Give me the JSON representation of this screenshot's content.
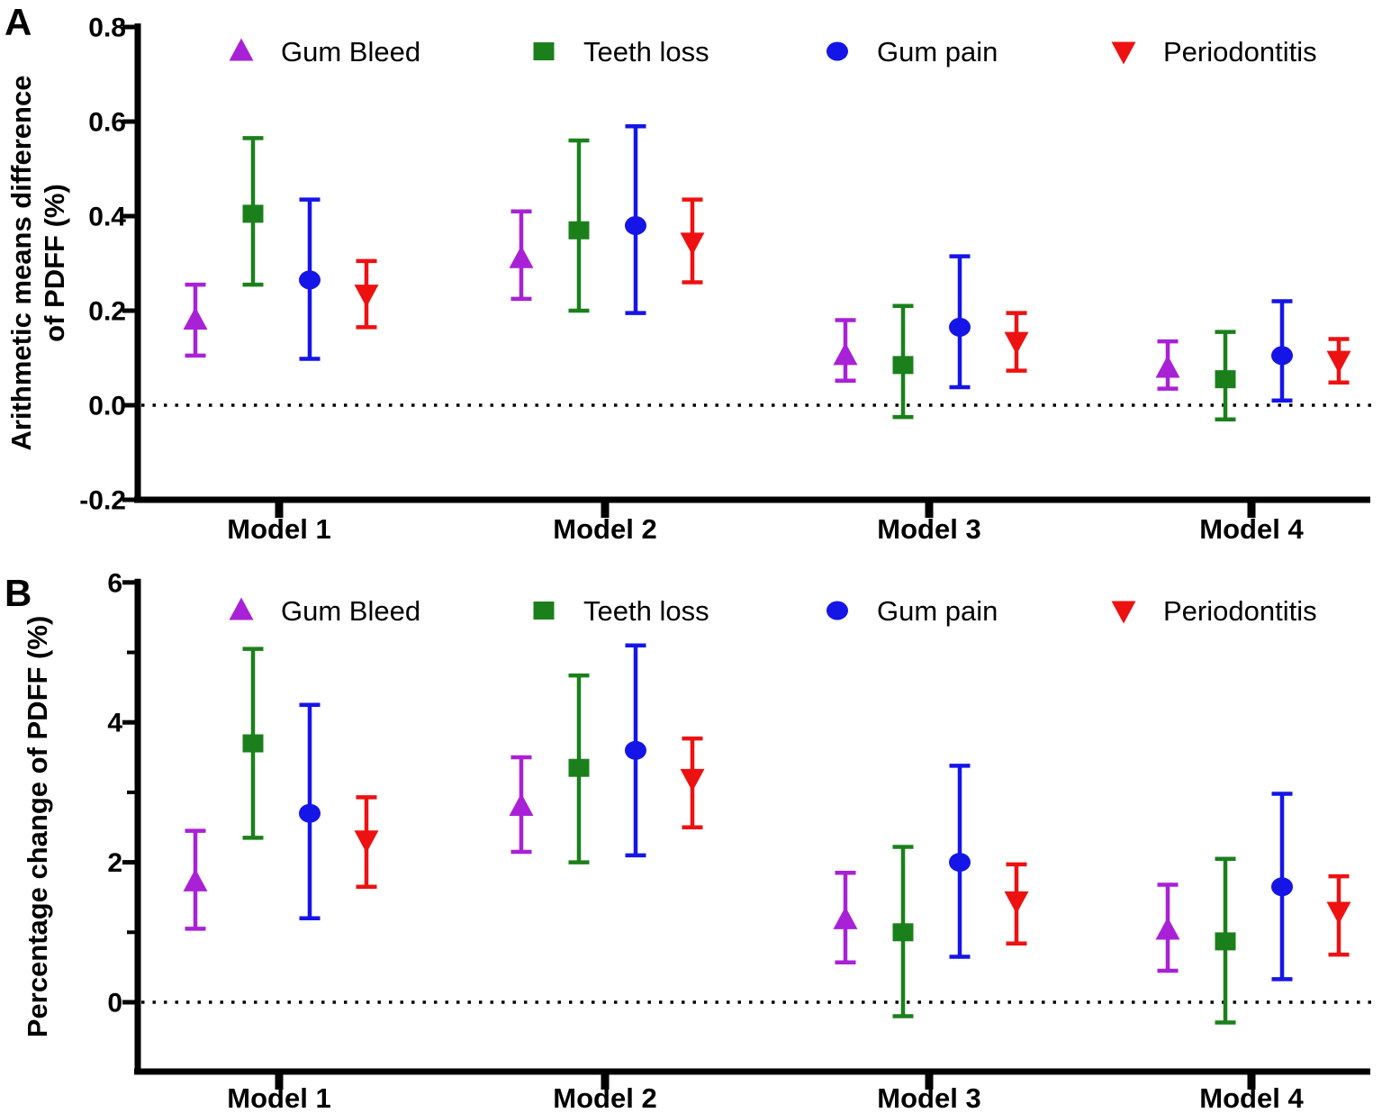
{
  "figure": {
    "panel_a_label": "A",
    "panel_b_label": "B",
    "background": "#ffffff",
    "axis_color": "#000000"
  },
  "chart_data": [
    {
      "type": "scatter",
      "panel": "A",
      "title": "",
      "xlabel": "",
      "ylabel_lines": [
        "Arithmetic means difference",
        "of PDFF (%)"
      ],
      "categories": [
        "Model 1",
        "Model 2",
        "Model 3",
        "Model 4"
      ],
      "ylim": [
        -0.2,
        0.8
      ],
      "yticks": [
        {
          "v": 0.8,
          "label": "0.8"
        },
        {
          "v": 0.6,
          "label": "0.6"
        },
        {
          "v": 0.4,
          "label": "0.4"
        },
        {
          "v": 0.2,
          "label": "0.2"
        },
        {
          "v": 0.0,
          "label": "0.0"
        },
        {
          "v": -0.2,
          "label": "-0.2"
        }
      ],
      "minor_yticks": [],
      "reference_line_y": 0,
      "grid": false,
      "legend_position": "top",
      "series": [
        {
          "name": "Gum Bleed",
          "marker": "triangle-up",
          "color": "#A921D6",
          "values": [
            0.18,
            0.31,
            0.105,
            0.078
          ],
          "ci_low": [
            0.105,
            0.225,
            0.052,
            0.035
          ],
          "ci_high": [
            0.255,
            0.41,
            0.18,
            0.135
          ]
        },
        {
          "name": "Teeth loss",
          "marker": "square",
          "color": "#1B801B",
          "values": [
            0.405,
            0.37,
            0.085,
            0.055
          ],
          "ci_low": [
            0.255,
            0.2,
            -0.025,
            -0.03
          ],
          "ci_high": [
            0.565,
            0.56,
            0.21,
            0.155
          ]
        },
        {
          "name": "Gum pain",
          "marker": "circle",
          "color": "#1515E8",
          "values": [
            0.265,
            0.38,
            0.165,
            0.105
          ],
          "ci_low": [
            0.098,
            0.195,
            0.038,
            0.01
          ],
          "ci_high": [
            0.435,
            0.59,
            0.315,
            0.22
          ]
        },
        {
          "name": "Periodontitis",
          "marker": "triangle-down",
          "color": "#EE1111",
          "values": [
            0.235,
            0.345,
            0.135,
            0.095
          ],
          "ci_low": [
            0.165,
            0.26,
            0.073,
            0.048
          ],
          "ci_high": [
            0.305,
            0.435,
            0.195,
            0.14
          ]
        }
      ]
    },
    {
      "type": "scatter",
      "panel": "B",
      "title": "",
      "xlabel": "",
      "ylabel_lines": [
        "Percentage change of PDFF (%)"
      ],
      "categories": [
        "Model 1",
        "Model 2",
        "Model 3",
        "Model 4"
      ],
      "ylim": [
        -1,
        6
      ],
      "yticks": [
        {
          "v": 6,
          "label": "6"
        },
        {
          "v": 4,
          "label": "4"
        },
        {
          "v": 2,
          "label": "2"
        },
        {
          "v": 0,
          "label": "0"
        }
      ],
      "minor_yticks": [
        5,
        3,
        1
      ],
      "reference_line_y": 0,
      "grid": false,
      "legend_position": "top",
      "series": [
        {
          "name": "Gum Bleed",
          "marker": "triangle-up",
          "color": "#A921D6",
          "values": [
            1.72,
            2.8,
            1.18,
            1.03
          ],
          "ci_low": [
            1.05,
            2.15,
            0.57,
            0.45
          ],
          "ci_high": [
            2.45,
            3.5,
            1.85,
            1.68
          ]
        },
        {
          "name": "Teeth loss",
          "marker": "square",
          "color": "#1B801B",
          "values": [
            3.7,
            3.35,
            1.0,
            0.87
          ],
          "ci_low": [
            2.35,
            2.0,
            -0.2,
            -0.29
          ],
          "ci_high": [
            5.05,
            4.67,
            2.22,
            2.05
          ]
        },
        {
          "name": "Gum pain",
          "marker": "circle",
          "color": "#1515E8",
          "values": [
            2.7,
            3.6,
            2.0,
            1.65
          ],
          "ci_low": [
            1.2,
            2.1,
            0.65,
            0.33
          ],
          "ci_high": [
            4.25,
            5.1,
            3.38,
            2.98
          ]
        },
        {
          "name": "Periodontitis",
          "marker": "triangle-down",
          "color": "#EE1111",
          "values": [
            2.32,
            3.2,
            1.45,
            1.3
          ],
          "ci_low": [
            1.65,
            2.5,
            0.84,
            0.68
          ],
          "ci_high": [
            2.93,
            3.77,
            1.97,
            1.8
          ]
        }
      ]
    }
  ]
}
